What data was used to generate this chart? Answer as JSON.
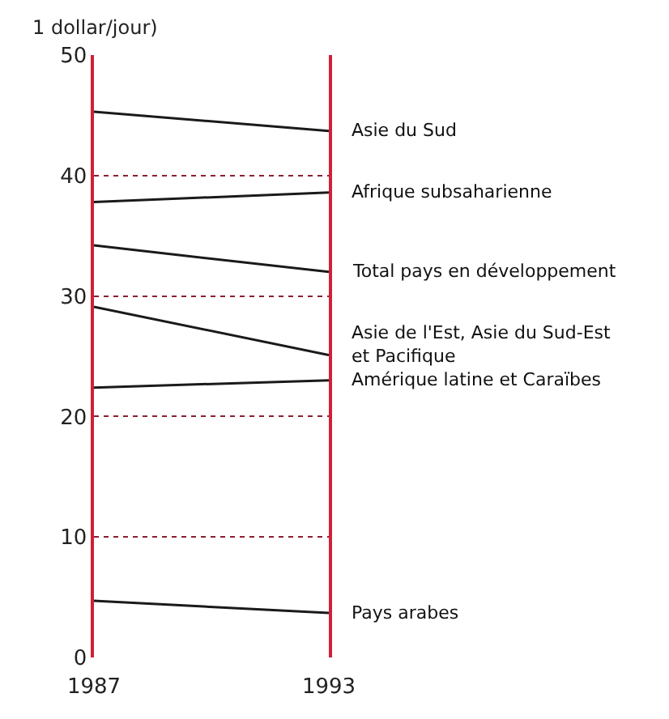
{
  "chart_data": {
    "type": "line",
    "ylabel": "1 dollar/jour)",
    "x": [
      1987,
      1993
    ],
    "xlim": [
      1987,
      1993
    ],
    "xticks": [
      1987,
      1993
    ],
    "ylim": [
      0,
      50
    ],
    "yticks": [
      0,
      10,
      20,
      30,
      40,
      50
    ],
    "grid": true,
    "legend": false,
    "marker": "none",
    "line_style": "solid",
    "series": [
      {
        "name": "Asie du Sud",
        "color": "#1a1a1a",
        "values": [
          45.3,
          43.7
        ]
      },
      {
        "name": "Afrique subsaharienne",
        "color": "#1a1a1a",
        "values": [
          37.8,
          38.6
        ]
      },
      {
        "name": "Total pays en développement",
        "color": "#1a1a1a",
        "values": [
          34.2,
          32.0
        ]
      },
      {
        "name": "Asie de l'Est, Asie du Sud-Est\net Pacifique",
        "color": "#1a1a1a",
        "values": [
          29.1,
          25.1
        ]
      },
      {
        "name": "Amérique latine et Caraïbes",
        "color": "#1a1a1a",
        "values": [
          22.4,
          23.0
        ]
      },
      {
        "name": "Pays arabes",
        "color": "#1a1a1a",
        "values": [
          4.7,
          3.7
        ]
      }
    ]
  }
}
